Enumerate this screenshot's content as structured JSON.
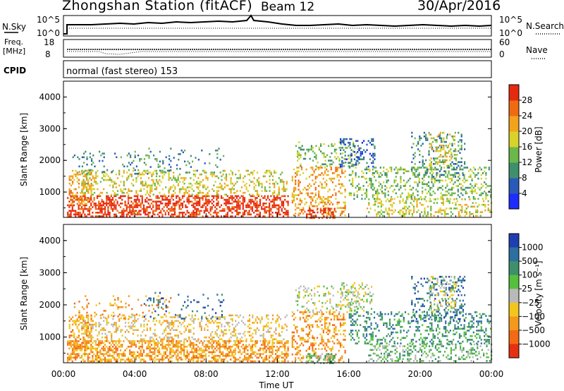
{
  "header": {
    "station": "Zhongshan Station (fitACF)",
    "beam": "Beam 12",
    "date": "30/Apr/2016"
  },
  "noise_panel": {
    "left_label": "N.Sky",
    "right_label": "N.Search",
    "left_ticks": [
      "10^5",
      "10^0"
    ],
    "right_ticks": [
      "10^5",
      "10^0"
    ]
  },
  "freq_panel": {
    "left_label_1": "Freq.",
    "left_label_2": "[MHz]",
    "left_ticks": [
      "18",
      "8"
    ],
    "right_label": "Nave",
    "right_ticks": [
      "60",
      "0"
    ]
  },
  "cpid": {
    "label": "CPID",
    "value": "normal (fast stereo) 153"
  },
  "chart_data": [
    {
      "type": "heatmap",
      "panel": "power",
      "ylabel": "Slant Range [km]",
      "yticks": [
        "1000",
        "2000",
        "3000",
        "4000"
      ],
      "ylim": [
        200,
        4500
      ],
      "colorbar": {
        "label": "Power [dB]",
        "ticks": [
          "4",
          "8",
          "12",
          "16",
          "20",
          "24",
          "28"
        ],
        "colors": [
          "#1e2cff",
          "#2a5ab8",
          "#3f8f6d",
          "#6bb84a",
          "#d8d22a",
          "#f3a21c",
          "#f06a12",
          "#e62a10"
        ]
      }
    },
    {
      "type": "heatmap",
      "panel": "velocity",
      "ylabel": "Slant Range [km]",
      "yticks": [
        "1000",
        "2000",
        "3000",
        "4000"
      ],
      "ylim": [
        200,
        4500
      ],
      "xlabel": "Time UT",
      "xticks": [
        "00:00",
        "04:00",
        "08:00",
        "12:00",
        "16:00",
        "20:00",
        "00:00"
      ],
      "colorbar": {
        "label": "Velocity [m s⁻¹]",
        "ticks": [
          "1000",
          "500",
          "100",
          "25",
          "−25",
          "−100",
          "−500",
          "−1000"
        ],
        "colors": [
          "#1f3fb0",
          "#2d6fa0",
          "#3f8f6d",
          "#55c03c",
          "#b9b9b9",
          "#f3c61c",
          "#f39a1c",
          "#f26a14",
          "#e63012"
        ]
      }
    }
  ]
}
